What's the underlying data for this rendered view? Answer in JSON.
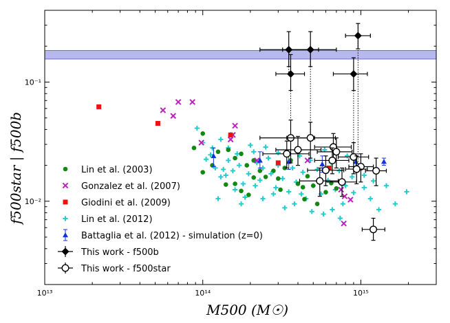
{
  "chart_data": {
    "type": "scatter",
    "xscale": "log",
    "yscale": "log",
    "xlim": [
      10000000000000.0,
      3000000000000000.0
    ],
    "ylim": [
      0.002,
      0.4
    ],
    "xlabel": "M500 (M☉)",
    "ylabel": "f500star | f500b",
    "x_ticks": [
      {
        "value": 10000000000000.0,
        "label": "10¹³"
      },
      {
        "value": 100000000000000.0,
        "label": "10¹⁴"
      },
      {
        "value": 1000000000000000.0,
        "label": "10¹⁵"
      }
    ],
    "y_ticks": [
      {
        "value": 0.01,
        "label": "10⁻²"
      },
      {
        "value": 0.1,
        "label": "10⁻¹"
      }
    ],
    "band": {
      "y_low": 0.156,
      "y_high": 0.184,
      "color": "#b8b8f0"
    },
    "legend_position": "lower-left",
    "series": [
      {
        "name": "Lin et al. (2003)",
        "marker": "circle",
        "color": "#118811",
        "points": [
          [
            88000000000000.0,
            0.028
          ],
          [
            100000000000000.0,
            0.037
          ],
          [
            145000000000000.0,
            0.027
          ],
          [
            125000000000000.0,
            0.026
          ],
          [
            160000000000000.0,
            0.023
          ],
          [
            175000000000000.0,
            0.025
          ],
          [
            190000000000000.0,
            0.02
          ],
          [
            210000000000000.0,
            0.022
          ],
          [
            230000000000000.0,
            0.018
          ],
          [
            115000000000000.0,
            0.02
          ],
          [
            100000000000000.0,
            0.0175
          ],
          [
            160000000000000.0,
            0.014
          ],
          [
            140000000000000.0,
            0.0138
          ],
          [
            175000000000000.0,
            0.0122
          ],
          [
            195000000000000.0,
            0.0113
          ],
          [
            250000000000000.0,
            0.016
          ],
          [
            280000000000000.0,
            0.018
          ],
          [
            300000000000000.0,
            0.0155
          ],
          [
            330000000000000.0,
            0.019
          ],
          [
            360000000000000.0,
            0.022
          ],
          [
            400000000000000.0,
            0.014
          ],
          [
            430000000000000.0,
            0.0131
          ],
          [
            460000000000000.0,
            0.0162
          ],
          [
            500000000000000.0,
            0.0135
          ],
          [
            550000000000000.0,
            0.0148
          ],
          [
            600000000000000.0,
            0.0119
          ],
          [
            650000000000000.0,
            0.0142
          ],
          [
            440000000000000.0,
            0.0104
          ],
          [
            530000000000000.0,
            0.0095
          ],
          [
            700000000000000.0,
            0.0128
          ],
          [
            310000000000000.0,
            0.0125
          ],
          [
            210000000000000.0,
            0.0158
          ]
        ]
      },
      {
        "name": "Gonzalez et al. (2007)",
        "marker": "x",
        "color": "#bb22bb",
        "points": [
          [
            56000000000000.0,
            0.058
          ],
          [
            65000000000000.0,
            0.052
          ],
          [
            70000000000000.0,
            0.068
          ],
          [
            86000000000000.0,
            0.068
          ],
          [
            98000000000000.0,
            0.031
          ],
          [
            160000000000000.0,
            0.043
          ],
          [
            155000000000000.0,
            0.036
          ],
          [
            220000000000000.0,
            0.022
          ],
          [
            460000000000000.0,
            0.022
          ],
          [
            750000000000000.0,
            0.0125
          ],
          [
            790000000000000.0,
            0.011
          ],
          [
            860000000000000.0,
            0.0103
          ],
          [
            780000000000000.0,
            0.0065
          ],
          [
            150000000000000.0,
            0.033
          ]
        ]
      },
      {
        "name": "Giodini et al. (2009)",
        "marker": "square",
        "color": "#ee1111",
        "points": [
          [
            22000000000000.0,
            0.062
          ],
          [
            52000000000000.0,
            0.045
          ],
          [
            150000000000000.0,
            0.036
          ],
          [
            300000000000000.0,
            0.021
          ],
          [
            630000000000000.0,
            0.019
          ]
        ]
      },
      {
        "name": "Lin et al. (2012)",
        "marker": "plus",
        "color": "#22cccc",
        "points": [
          [
            92000000000000.0,
            0.041
          ],
          [
            100000000000000.0,
            0.031
          ],
          [
            115000000000000.0,
            0.028
          ],
          [
            130000000000000.0,
            0.033
          ],
          [
            145000000000000.0,
            0.028
          ],
          [
            120000000000000.0,
            0.019
          ],
          [
            130000000000000.0,
            0.016
          ],
          [
            145000000000000.0,
            0.022
          ],
          [
            155000000000000.0,
            0.018
          ],
          [
            165000000000000.0,
            0.025
          ],
          [
            170000000000000.0,
            0.02
          ],
          [
            180000000000000.0,
            0.014
          ],
          [
            195000000000000.0,
            0.017
          ],
          [
            210000000000000.0,
            0.026
          ],
          [
            220000000000000.0,
            0.021
          ],
          [
            230000000000000.0,
            0.015
          ],
          [
            240000000000000.0,
            0.019
          ],
          [
            260000000000000.0,
            0.023
          ],
          [
            270000000000000.0,
            0.017
          ],
          [
            290000000000000.0,
            0.013
          ],
          [
            300000000000000.0,
            0.02
          ],
          [
            320000000000000.0,
            0.0155
          ],
          [
            340000000000000.0,
            0.026
          ],
          [
            350000000000000.0,
            0.012
          ],
          [
            370000000000000.0,
            0.019
          ],
          [
            390000000000000.0,
            0.0145
          ],
          [
            410000000000000.0,
            0.024
          ],
          [
            430000000000000.0,
            0.0175
          ],
          [
            450000000000000.0,
            0.0105
          ],
          [
            480000000000000.0,
            0.022
          ],
          [
            500000000000000.0,
            0.0135
          ],
          [
            530000000000000.0,
            0.0185
          ],
          [
            560000000000000.0,
            0.0115
          ],
          [
            590000000000000.0,
            0.027
          ],
          [
            620000000000000.0,
            0.015
          ],
          [
            650000000000000.0,
            0.021
          ],
          [
            690000000000000.0,
            0.0125
          ],
          [
            730000000000000.0,
            0.018
          ],
          [
            770000000000000.0,
            0.0095
          ],
          [
            820000000000000.0,
            0.024
          ],
          [
            880000000000000.0,
            0.016
          ],
          [
            950000000000000.0,
            0.019
          ],
          [
            1050000000000000.0,
            0.013
          ],
          [
            1150000000000000.0,
            0.0105
          ],
          [
            1300000000000000.0,
            0.0085
          ],
          [
            1450000000000000.0,
            0.0135
          ],
          [
            1650000000000000.0,
            0.0095
          ],
          [
            1950000000000000.0,
            0.012
          ],
          [
            125000000000000.0,
            0.0105
          ],
          [
            160000000000000.0,
            0.0125
          ],
          [
            240000000000000.0,
            0.0105
          ],
          [
            280000000000000.0,
            0.0115
          ],
          [
            330000000000000.0,
            0.0088
          ],
          [
            185000000000000.0,
            0.0108
          ],
          [
            200000000000000.0,
            0.0295
          ],
          [
            105000000000000.0,
            0.0225
          ],
          [
            140000000000000.0,
            0.0165
          ],
          [
            250000000000000.0,
            0.0285
          ],
          [
            380000000000000.0,
            0.0095
          ],
          [
            490000000000000.0,
            0.0082
          ],
          [
            580000000000000.0,
            0.0078
          ],
          [
            660000000000000.0,
            0.0085
          ],
          [
            740000000000000.0,
            0.0072
          ],
          [
            1200000000000000.0,
            0.0148
          ],
          [
            1050000000000000.0,
            0.0165
          ],
          [
            900000000000000.0,
            0.0118
          ],
          [
            800000000000000.0,
            0.0135
          ],
          [
            420000000000000.0,
            0.0115
          ],
          [
            300000000000000.0,
            0.0255
          ],
          [
            215000000000000.0,
            0.0135
          ],
          [
            175000000000000.0,
            0.0095
          ],
          [
            112000000000000.0,
            0.0245
          ],
          [
            135000000000000.0,
            0.0185
          ]
        ]
      },
      {
        "name": "Battaglia et al. (2012) - simulation (z=0)",
        "marker": "triangle",
        "color": "#1133dd",
        "points": [
          [
            117000000000000.0,
            0.024,
            0.028,
            0.0195
          ],
          [
            230000000000000.0,
            0.022,
            0.026,
            0.019
          ],
          [
            350000000000000.0,
            0.0215,
            0.025,
            0.0185
          ],
          [
            570000000000000.0,
            0.0205,
            0.024,
            0.0175
          ],
          [
            930000000000000.0,
            0.0215,
            0.025,
            0.0185
          ],
          [
            1400000000000000.0,
            0.0215,
            0.023,
            0.02
          ]
        ]
      },
      {
        "name": "This work - f500b",
        "marker": "diamond",
        "color": "#000000",
        "points": [
          [
            350000000000000.0,
            0.187,
            0.265,
            0.135,
            230000000000000.0,
            540000000000000.0
          ],
          [
            480000000000000.0,
            0.187,
            0.265,
            0.135,
            320000000000000.0,
            700000000000000.0
          ],
          [
            960000000000000.0,
            0.245,
            0.31,
            0.19,
            800000000000000.0,
            1150000000000000.0
          ],
          [
            360000000000000.0,
            0.117,
            0.17,
            0.085,
            290000000000000.0,
            440000000000000.0
          ],
          [
            900000000000000.0,
            0.117,
            0.16,
            0.085,
            670000000000000.0,
            1100000000000000.0
          ]
        ]
      },
      {
        "name": "This work - f500star",
        "marker": "open-circle",
        "color": "#000000",
        "points": [
          [
            360000000000000.0,
            0.034,
            0.048,
            0.021,
            230000000000000.0,
            510000000000000.0
          ],
          [
            480000000000000.0,
            0.034,
            0.046,
            0.023,
            340000000000000.0,
            690000000000000.0
          ],
          [
            400000000000000.0,
            0.027,
            0.035,
            0.02,
            290000000000000.0,
            560000000000000.0
          ],
          [
            340000000000000.0,
            0.025,
            0.032,
            0.019,
            240000000000000.0,
            470000000000000.0
          ],
          [
            670000000000000.0,
            0.0285,
            0.037,
            0.021,
            510000000000000.0,
            870000000000000.0
          ],
          [
            700000000000000.0,
            0.026,
            0.034,
            0.019,
            530000000000000.0,
            880000000000000.0
          ],
          [
            660000000000000.0,
            0.022,
            0.028,
            0.017,
            510000000000000.0,
            840000000000000.0
          ],
          [
            900000000000000.0,
            0.0235,
            0.031,
            0.017,
            720000000000000.0,
            1120000000000000.0
          ],
          [
            1000000000000000.0,
            0.0195,
            0.025,
            0.0145,
            840000000000000.0,
            1200000000000000.0
          ],
          [
            600000000000000.0,
            0.0182,
            0.024,
            0.0135,
            460000000000000.0,
            780000000000000.0
          ],
          [
            550000000000000.0,
            0.0148,
            0.019,
            0.011,
            410000000000000.0,
            720000000000000.0
          ],
          [
            760000000000000.0,
            0.0145,
            0.019,
            0.011,
            600000000000000.0,
            940000000000000.0
          ],
          [
            940000000000000.0,
            0.0186,
            0.024,
            0.014,
            800000000000000.0,
            1100000000000000.0
          ],
          [
            1250000000000000.0,
            0.018,
            0.023,
            0.0135,
            1070000000000000.0,
            1450000000000000.0
          ],
          [
            1200000000000000.0,
            0.0058,
            0.0072,
            0.0047,
            1020000000000000.0,
            1420000000000000.0
          ]
        ]
      }
    ],
    "connectors": [
      {
        "x": 350000000000000.0,
        "y_top": 0.187,
        "y_bottom": 0.117
      },
      {
        "x": 360000000000000.0,
        "y_top": 0.117,
        "y_bottom": 0.034
      },
      {
        "x": 480000000000000.0,
        "y_top": 0.187,
        "y_bottom": 0.034
      },
      {
        "x": 900000000000000.0,
        "y_top": 0.117,
        "y_bottom": 0.0235
      },
      {
        "x": 960000000000000.0,
        "y_top": 0.245,
        "y_bottom": 0.0195
      }
    ]
  },
  "legend": {
    "items": [
      {
        "label": "Lin et al. (2003)",
        "marker": "circle",
        "color": "#118811"
      },
      {
        "label": "Gonzalez et al. (2007)",
        "marker": "x",
        "color": "#bb22bb"
      },
      {
        "label": "Giodini et al. (2009)",
        "marker": "square",
        "color": "#ee1111"
      },
      {
        "label": "Lin et al. (2012)",
        "marker": "plus",
        "color": "#22cccc"
      },
      {
        "label": "Battaglia et al. (2012) - simulation (z=0)",
        "marker": "triangle",
        "color": "#1133dd"
      },
      {
        "label": "This work - f500b",
        "marker": "diamond",
        "color": "#000000"
      },
      {
        "label": "This work - f500star",
        "marker": "open-circle",
        "color": "#000000"
      }
    ]
  }
}
